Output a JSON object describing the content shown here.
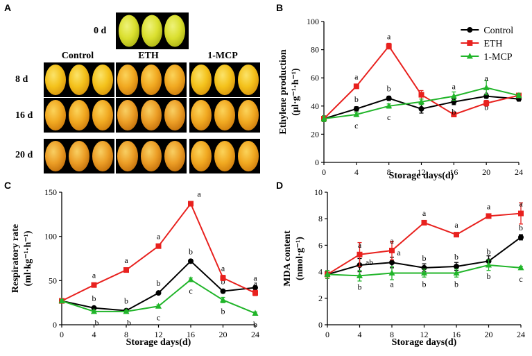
{
  "figure": {
    "panel_a": {
      "letter": "A",
      "day0_label": "0 d",
      "columns": [
        "Control",
        "ETH",
        "1-MCP"
      ],
      "rows": [
        "8 d",
        "16 d",
        "20 d"
      ]
    }
  },
  "chart_data": [
    {
      "panel": "B",
      "type": "line",
      "xlabel": "Storage days(d)",
      "ylabel": "Ethylene production",
      "yunit": "(µl·g⁻¹·h⁻¹)",
      "x": [
        0,
        4,
        8,
        12,
        16,
        20,
        24
      ],
      "xlim": [
        0,
        24
      ],
      "ylim": [
        0,
        100
      ],
      "yticks": [
        0,
        20,
        40,
        60,
        80,
        100
      ],
      "legend": "top-right",
      "series": [
        {
          "name": "Control",
          "color": "#000000",
          "marker": "circle",
          "values": [
            31,
            38,
            45.5,
            38,
            43,
            47,
            45
          ],
          "errors": [
            2,
            1.5,
            1.5,
            3,
            2,
            1.5,
            1.5
          ],
          "labels": [
            "",
            "b",
            "b",
            "",
            "b",
            "b",
            ""
          ]
        },
        {
          "name": "ETH",
          "color": "#e8211e",
          "marker": "square",
          "values": [
            31,
            54,
            82.5,
            48,
            34,
            42,
            47.5
          ],
          "errors": [
            2,
            1.5,
            2,
            3,
            1.5,
            2,
            1.5
          ],
          "labels": [
            "",
            "a",
            "a",
            "",
            "b",
            "a",
            ""
          ]
        },
        {
          "name": "1-MCP",
          "color": "#21b52a",
          "marker": "triangle",
          "values": [
            31,
            34,
            40,
            43,
            47,
            53,
            47.5
          ],
          "errors": [
            2,
            1.5,
            1.5,
            2,
            3,
            5,
            1.5
          ],
          "labels": [
            "",
            "c",
            "c",
            "",
            "a",
            "a",
            ""
          ]
        }
      ]
    },
    {
      "panel": "C",
      "type": "line",
      "xlabel": "Storage days(d)",
      "ylabel": "Respiratory rate",
      "yunit": "(ml·kg⁻¹·h⁻¹)",
      "x": [
        0,
        4,
        8,
        12,
        16,
        20,
        24
      ],
      "xlim": [
        0,
        24
      ],
      "ylim": [
        0,
        150
      ],
      "yticks": [
        0,
        50,
        100,
        150
      ],
      "series": [
        {
          "name": "Control",
          "color": "#000000",
          "marker": "circle",
          "values": [
            27,
            19,
            16,
            36,
            72,
            38,
            42
          ],
          "errors": [
            1.5,
            1.5,
            1.5,
            1.5,
            2,
            2,
            2
          ],
          "labels": [
            "",
            "b",
            "b",
            "b",
            "b",
            "b",
            "a"
          ]
        },
        {
          "name": "ETH",
          "color": "#e8211e",
          "marker": "square",
          "values": [
            27,
            45,
            62,
            89,
            137,
            53,
            36
          ],
          "errors": [
            1.5,
            1.5,
            1.5,
            2,
            2,
            3,
            3
          ],
          "labels": [
            "",
            "a",
            "a",
            "a",
            "a",
            "a",
            "a"
          ]
        },
        {
          "name": "1-MCP",
          "color": "#21b52a",
          "marker": "triangle",
          "values": [
            27,
            15,
            15,
            21,
            51,
            28,
            13
          ],
          "errors": [
            1.5,
            1.5,
            1.5,
            1.5,
            2,
            3,
            1.5
          ],
          "labels": [
            "",
            "b",
            "b",
            "c",
            "c",
            "b",
            "b"
          ]
        }
      ]
    },
    {
      "panel": "D",
      "type": "line",
      "xlabel": "Storage days(d)",
      "ylabel": "MDA content",
      "yunit": "(nmol·g⁻¹)",
      "x": [
        0,
        4,
        8,
        12,
        16,
        20,
        24
      ],
      "xlim": [
        0,
        24
      ],
      "ylim": [
        0,
        10
      ],
      "yticks": [
        0,
        2,
        4,
        6,
        8,
        10
      ],
      "series": [
        {
          "name": "Control",
          "color": "#000000",
          "marker": "circle",
          "values": [
            3.8,
            4.5,
            4.7,
            4.3,
            4.4,
            4.8,
            6.6
          ],
          "errors": [
            0.3,
            0.5,
            0.4,
            0.3,
            0.3,
            0.4,
            0.2
          ],
          "labels": [
            "",
            "ab",
            "a",
            "b",
            "b",
            "b",
            "b"
          ]
        },
        {
          "name": "ETH",
          "color": "#e8211e",
          "marker": "square",
          "values": [
            3.8,
            5.3,
            5.6,
            7.7,
            6.8,
            8.2,
            8.4
          ],
          "errors": [
            0.3,
            0.9,
            0.7,
            0.15,
            0.15,
            0.15,
            0.8
          ],
          "labels": [
            "",
            "a",
            "a",
            "a",
            "a",
            "a",
            "a"
          ]
        },
        {
          "name": "1-MCP",
          "color": "#21b52a",
          "marker": "triangle",
          "values": [
            3.8,
            3.7,
            3.9,
            3.9,
            3.9,
            4.5,
            4.3
          ],
          "errors": [
            0.3,
            0.4,
            0.5,
            0.3,
            0.3,
            0.4,
            0.1
          ],
          "labels": [
            "",
            "b",
            "a",
            "b",
            "b",
            "b",
            "c"
          ]
        }
      ]
    }
  ]
}
